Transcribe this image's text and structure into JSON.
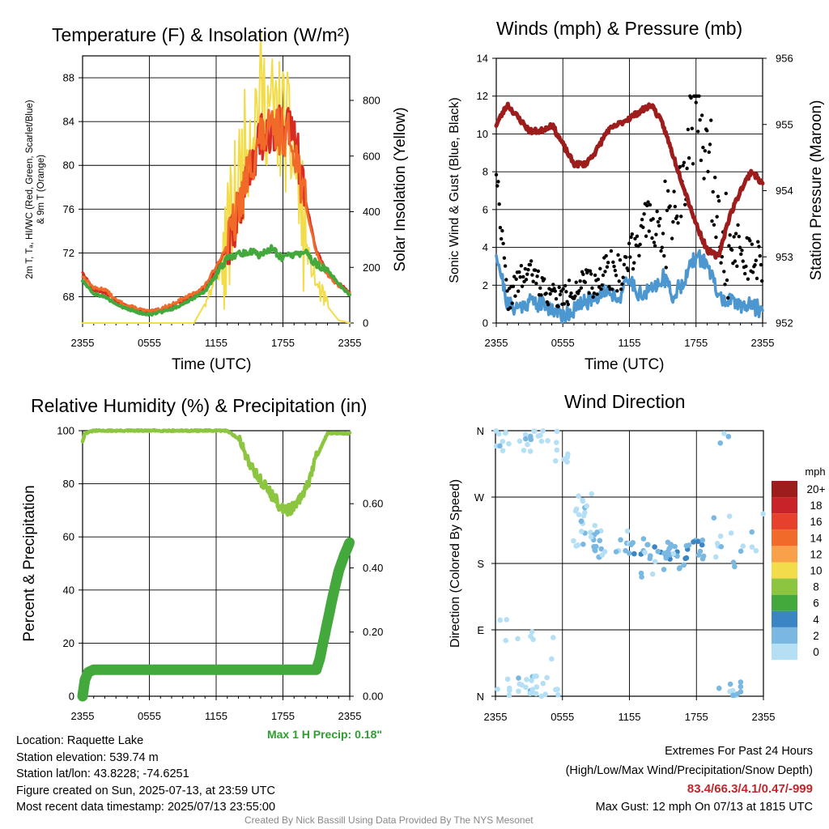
{
  "ticks_x": [
    "2355",
    "0555",
    "1155",
    "1755",
    "2355"
  ],
  "chart_data": [
    {
      "type": "line",
      "title": "Temperature (F) & Insolation (W/m²)",
      "xlabel": "Time (UTC)",
      "ylabel_lines": [
        "2m T, Tₐ, HI/WC (Red, Green, Scarlet/Blue)",
        "& 9m T (Orange)"
      ],
      "y2label": "Solar Insolation (Yellow)",
      "yticks": [
        "68",
        "72",
        "76",
        "80",
        "84",
        "88"
      ],
      "y2ticks": [
        "0",
        "200",
        "400",
        "600",
        "800"
      ],
      "ylim": [
        65.6,
        90.0
      ],
      "y2lim": [
        0,
        960
      ],
      "grid": true,
      "series": [
        {
          "color": "#d62a23",
          "x_hours": [
            0,
            1,
            2,
            3,
            4,
            5,
            6,
            7,
            8,
            9,
            10,
            11,
            12,
            13,
            14,
            15,
            16,
            17,
            18,
            19,
            20,
            21,
            22,
            23,
            24
          ],
          "values": [
            70.3,
            68.6,
            68.4,
            67.6,
            67.1,
            66.8,
            66.6,
            66.8,
            67.1,
            67.6,
            68.1,
            68.9,
            70.5,
            72.6,
            75.5,
            79.5,
            82.5,
            83.2,
            83.4,
            83.0,
            77.0,
            72.2,
            70.2,
            69.2,
            68.4
          ]
        },
        {
          "color": "#f26a2a",
          "x_hours": [
            0,
            1,
            2,
            3,
            4,
            5,
            6,
            7,
            8,
            9,
            10,
            11,
            12,
            13,
            14,
            15,
            16,
            17,
            18,
            19,
            20,
            21,
            22,
            23,
            24
          ],
          "values": [
            69.9,
            68.8,
            68.7,
            67.7,
            67.2,
            66.9,
            66.6,
            66.9,
            67.3,
            67.8,
            68.3,
            69.0,
            70.8,
            72.7,
            76.0,
            79.8,
            82.6,
            83.0,
            83.2,
            82.0,
            76.5,
            72.0,
            70.0,
            69.0,
            68.3
          ]
        },
        {
          "color": "#44a93d",
          "x_hours": [
            0,
            1,
            2,
            3,
            4,
            5,
            6,
            7,
            8,
            9,
            10,
            11,
            12,
            13,
            14,
            15,
            16,
            17,
            18,
            19,
            20,
            21,
            22,
            23,
            24
          ],
          "values": [
            69.5,
            68.3,
            68.0,
            67.3,
            66.9,
            66.6,
            66.4,
            66.6,
            66.9,
            67.3,
            67.9,
            68.5,
            70.0,
            71.5,
            71.9,
            72.2,
            71.8,
            72.4,
            71.5,
            71.8,
            72.0,
            71.0,
            70.4,
            69.2,
            68.1
          ]
        },
        {
          "color": "#f2dc4a",
          "axis": "y2",
          "x_hours": [
            0,
            1,
            2,
            3,
            4,
            5,
            6,
            7,
            8,
            9,
            10,
            11,
            12,
            13,
            14,
            15,
            16,
            17,
            18,
            19,
            20,
            21,
            22,
            23,
            24
          ],
          "values": [
            0,
            0,
            0,
            0,
            0,
            0,
            0,
            0,
            0,
            0,
            0,
            70,
            160,
            280,
            500,
            700,
            820,
            760,
            720,
            600,
            280,
            140,
            60,
            10,
            0
          ]
        }
      ]
    },
    {
      "type": "line",
      "title": "Winds (mph) & Pressure (mb)",
      "xlabel": "Time (UTC)",
      "ylabel": "Sonic Wind & Gust (Blue, Black)",
      "y2label": "Station Pressure (Maroon)",
      "yticks": [
        "0",
        "2",
        "4",
        "6",
        "8",
        "10",
        "12",
        "14"
      ],
      "y2ticks": [
        "952",
        "953",
        "954",
        "955",
        "956"
      ],
      "ylim": [
        0,
        14
      ],
      "y2lim": [
        952,
        956
      ],
      "grid": true,
      "series": [
        {
          "color": "#4d97d1",
          "x_hours": [
            0,
            1,
            2,
            3,
            4,
            5,
            6,
            7,
            8,
            9,
            10,
            11,
            12,
            13,
            14,
            15,
            16,
            17,
            18,
            19,
            20,
            21,
            22,
            23,
            24
          ],
          "values": [
            3.8,
            1.0,
            0.8,
            1.2,
            1.0,
            0.8,
            0.4,
            0.7,
            1.1,
            1.4,
            1.8,
            1.3,
            2.3,
            1.5,
            1.7,
            2.5,
            1.4,
            2.4,
            3.5,
            3.2,
            1.4,
            1.1,
            1.0,
            0.9,
            0.7
          ]
        },
        {
          "color": "#000000",
          "x_hours": [
            0,
            1,
            2,
            3,
            4,
            5,
            6,
            7,
            8,
            9,
            10,
            11,
            12,
            13,
            14,
            15,
            16,
            17,
            18,
            19,
            20,
            21,
            22,
            23,
            24
          ],
          "values": [
            8.2,
            1.2,
            2.2,
            2.8,
            2.0,
            1.5,
            1.3,
            1.9,
            2.2,
            1.9,
            3.2,
            2.4,
            3.6,
            4.9,
            5.4,
            4.7,
            7.2,
            8.3,
            12.0,
            9.3,
            6.2,
            3.6,
            4.3,
            3.0,
            3.4
          ]
        },
        {
          "color": "#9d1c1c",
          "axis": "y2",
          "x_hours": [
            0,
            1,
            2,
            3,
            4,
            5,
            6,
            7,
            8,
            9,
            10,
            11,
            12,
            13,
            14,
            15,
            16,
            17,
            18,
            19,
            20,
            21,
            22,
            23,
            24
          ],
          "values": [
            955.0,
            955.3,
            955.1,
            954.9,
            954.9,
            955.0,
            954.7,
            954.4,
            954.4,
            954.6,
            954.9,
            955.0,
            955.1,
            955.2,
            955.3,
            955.0,
            954.5,
            954.0,
            953.5,
            953.1,
            953.0,
            953.6,
            954.0,
            954.3,
            954.1
          ]
        }
      ]
    },
    {
      "type": "line",
      "title": "Relative Humidity (%) & Precipitation (in)",
      "ylabel": "Percent & Precipitation",
      "yticks": [
        "0",
        "20",
        "40",
        "60",
        "80",
        "100"
      ],
      "y2ticks": [
        "0.00",
        "0.20",
        "0.40",
        "0.60"
      ],
      "ylim": [
        0,
        100
      ],
      "y2lim": [
        0,
        0.8275
      ],
      "grid": true,
      "series": [
        {
          "color": "#8cc640",
          "x_hours": [
            0,
            0.2,
            1,
            2,
            3,
            4,
            5,
            6,
            7,
            8,
            9,
            10,
            11,
            12,
            13,
            14,
            15,
            16,
            17,
            18,
            19,
            20,
            21,
            22,
            23,
            24
          ],
          "values": [
            96,
            99,
            100,
            100,
            100,
            100,
            100,
            100,
            100,
            100,
            100,
            100,
            100,
            100,
            100,
            97,
            88,
            81,
            76,
            70,
            71,
            77,
            90,
            99,
            99,
            99
          ]
        },
        {
          "color": "#44a93d",
          "x_hours": [
            0,
            0.2,
            0.5,
            1,
            2,
            4,
            6,
            8,
            10,
            12,
            14,
            16,
            18,
            20,
            21.0,
            21.3,
            21.6,
            22,
            22.5,
            23,
            23.5,
            24
          ],
          "values": [
            0,
            6,
            9,
            10,
            10,
            10,
            10,
            10,
            10,
            10,
            10,
            10,
            10,
            10,
            10,
            14,
            20,
            28,
            38,
            47,
            53,
            58
          ]
        }
      ],
      "annotation": "Max 1 H Precip: 0.18\""
    },
    {
      "type": "scatter",
      "title": "Wind Direction",
      "ylabel": "Direction (Colored By Speed)",
      "yticks": [
        "N",
        "E",
        "S",
        "W",
        "N"
      ],
      "grid": true,
      "colorbar": {
        "unit": "mph",
        "labels": [
          "20+",
          "18",
          "16",
          "14",
          "12",
          "10",
          "8",
          "6",
          "4",
          "2",
          "0"
        ],
        "colors": [
          "#9d1c1c",
          "#c72329",
          "#e6412c",
          "#f26a2a",
          "#f9a04a",
          "#f2dc4a",
          "#8cc640",
          "#44a93d",
          "#3b85c4",
          "#7ab8e2",
          "#b5dff4"
        ]
      }
    }
  ],
  "info": {
    "location": "Location: Raquette Lake",
    "elevation": "Station elevation: 539.74 m",
    "latlon": "Station lat/lon: 43.8228; -74.6251",
    "created": "Figure created on Sun, 2025-07-13, at 23:59 UTC",
    "recent": "Most recent data timestamp: 2025/07/13 23:55:00"
  },
  "extremes": {
    "title": "Extremes For Past 24 Hours",
    "subtitle": "(High/Low/Max Wind/Precipitation/Snow Depth)",
    "values": "83.4/66.3/4.1/0.47/-999",
    "gust": "Max Gust: 12 mph On 07/13 at 1815 UTC"
  },
  "credit": "Created By Nick Bassill Using Data Provided By The NYS Mesonet",
  "colors": {
    "extremes_red": "#c0272d",
    "precip_green": "#2e9e2e",
    "credit_gray": "#888888"
  }
}
